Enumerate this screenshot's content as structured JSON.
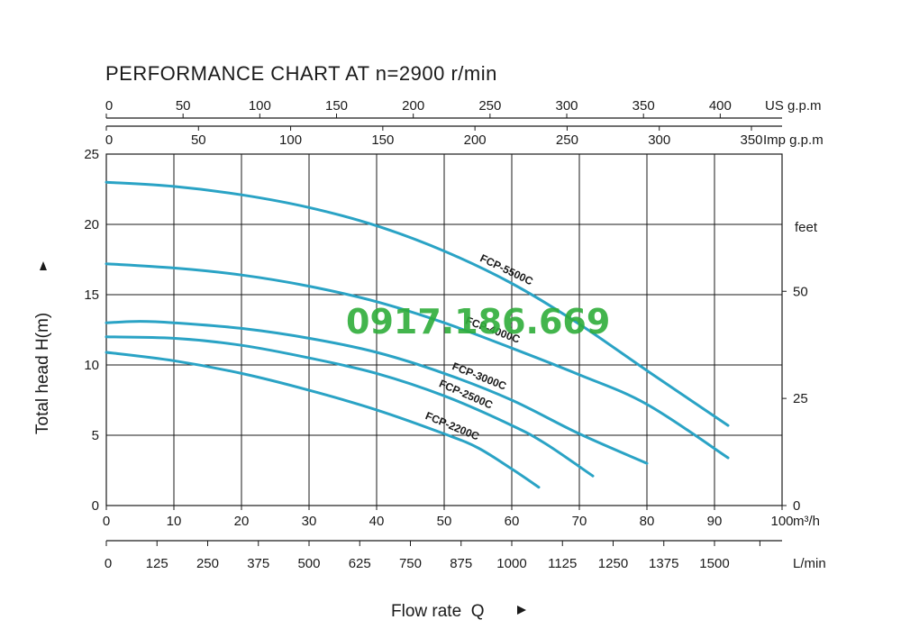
{
  "chart_data": {
    "type": "line",
    "title": "PERFORMANCE CHART AT n=2900 r/min",
    "xlabel": "Flow rate  Q",
    "ylabel": "Total  head H(m)",
    "x_unit": "m³/h",
    "xlim": [
      0,
      100
    ],
    "ylim": [
      0,
      25
    ],
    "x_ticks": [
      0,
      10,
      20,
      30,
      40,
      50,
      60,
      70,
      80,
      90,
      100
    ],
    "y_ticks": [
      0,
      5,
      10,
      15,
      20,
      25
    ],
    "grid": true,
    "secondary_axes": {
      "us_gpm": {
        "label": "US g.p.m",
        "ticks": [
          0,
          50,
          100,
          150,
          200,
          250,
          300,
          350,
          400
        ]
      },
      "imp_gpm": {
        "label": "Imp g.p.m",
        "ticks": [
          0,
          50,
          100,
          150,
          200,
          250,
          300,
          350
        ]
      },
      "feet": {
        "label": "feet",
        "ticks": [
          0,
          25,
          50
        ]
      },
      "l_min": {
        "label": "L/min",
        "ticks": [
          0,
          125,
          250,
          375,
          500,
          625,
          750,
          875,
          1000,
          1125,
          1250,
          1375,
          1500
        ]
      }
    },
    "series": [
      {
        "name": "FCP-5500C",
        "x": [
          0,
          10,
          20,
          30,
          40,
          50,
          60,
          70,
          80,
          92
        ],
        "y": [
          23.0,
          22.7,
          22.1,
          21.2,
          19.9,
          18.1,
          15.8,
          12.9,
          9.6,
          5.7
        ]
      },
      {
        "name": "FCP-4000C",
        "x": [
          0,
          10,
          20,
          30,
          40,
          50,
          60,
          70,
          80,
          92
        ],
        "y": [
          17.2,
          16.9,
          16.4,
          15.6,
          14.5,
          13.0,
          11.2,
          9.3,
          7.2,
          3.4
        ]
      },
      {
        "name": "FCP-3000C",
        "x": [
          0,
          5,
          10,
          20,
          30,
          40,
          50,
          60,
          70,
          80
        ],
        "y": [
          13.0,
          13.1,
          13.0,
          12.6,
          11.9,
          10.9,
          9.4,
          7.5,
          5.1,
          3.0
        ]
      },
      {
        "name": "FCP-2500C",
        "x": [
          0,
          10,
          20,
          30,
          40,
          50,
          60,
          65,
          72
        ],
        "y": [
          12.0,
          11.9,
          11.4,
          10.5,
          9.4,
          7.8,
          5.7,
          4.4,
          2.1
        ]
      },
      {
        "name": "FCP-2200C",
        "x": [
          0,
          10,
          20,
          30,
          40,
          50,
          55,
          60,
          64
        ],
        "y": [
          10.9,
          10.3,
          9.4,
          8.2,
          6.8,
          5.1,
          4.1,
          2.6,
          1.3
        ]
      }
    ],
    "line_color": "#2aa3c5"
  },
  "watermark": "0917.186.669"
}
